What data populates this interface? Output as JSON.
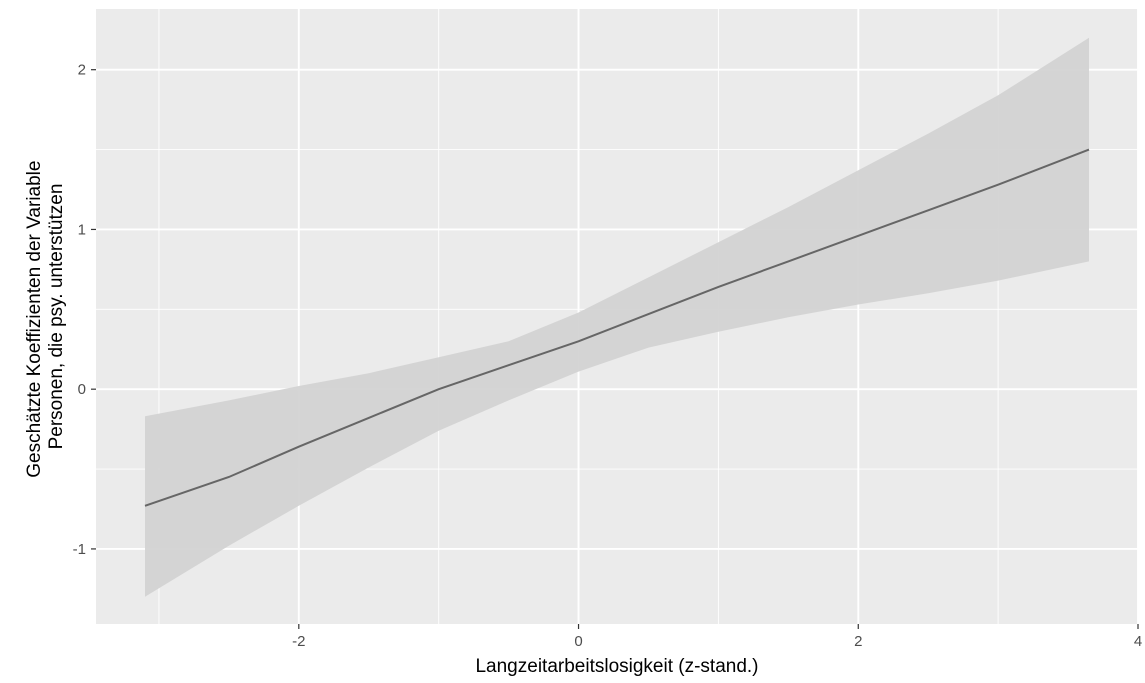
{
  "chart_data": {
    "type": "line",
    "title": "",
    "xlabel": "Langzeitarbeitslosigkeit (z-stand.)",
    "ylabel_lines": [
      "Geschätzte Koeffizienten der Variable",
      "Personen, die psy. unterstützen"
    ],
    "xlim": [
      -3.45,
      4
    ],
    "ylim": [
      -1.47,
      2.38
    ],
    "x_ticks": [
      -2,
      0,
      2,
      4
    ],
    "x_tick_labels": [
      "-2",
      "0",
      "2",
      "4"
    ],
    "y_ticks": [
      -1,
      0,
      1,
      2
    ],
    "y_tick_labels": [
      "-1",
      "0",
      "1",
      "2"
    ],
    "grid": true,
    "series": [
      {
        "x": [
          -3.1,
          -2.5,
          -2.0,
          -1.5,
          -1.0,
          -0.5,
          0.0,
          0.5,
          1.0,
          1.5,
          2.0,
          2.5,
          3.0,
          3.65
        ],
        "y": [
          -0.73,
          -0.55,
          -0.36,
          -0.18,
          0.0,
          0.15,
          0.3,
          0.47,
          0.64,
          0.8,
          0.96,
          1.12,
          1.28,
          1.5
        ],
        "lower": [
          -1.3,
          -0.98,
          -0.73,
          -0.49,
          -0.26,
          -0.07,
          0.11,
          0.26,
          0.36,
          0.45,
          0.53,
          0.6,
          0.68,
          0.8
        ],
        "upper": [
          -0.17,
          -0.07,
          0.02,
          0.1,
          0.2,
          0.3,
          0.48,
          0.7,
          0.92,
          1.14,
          1.37,
          1.6,
          1.84,
          2.2
        ]
      }
    ],
    "colors": {
      "panel": "#ebebeb",
      "grid_major": "#ffffff",
      "ribbon": "#d3d3d3",
      "line": "#666666",
      "tick": "#333333"
    }
  }
}
